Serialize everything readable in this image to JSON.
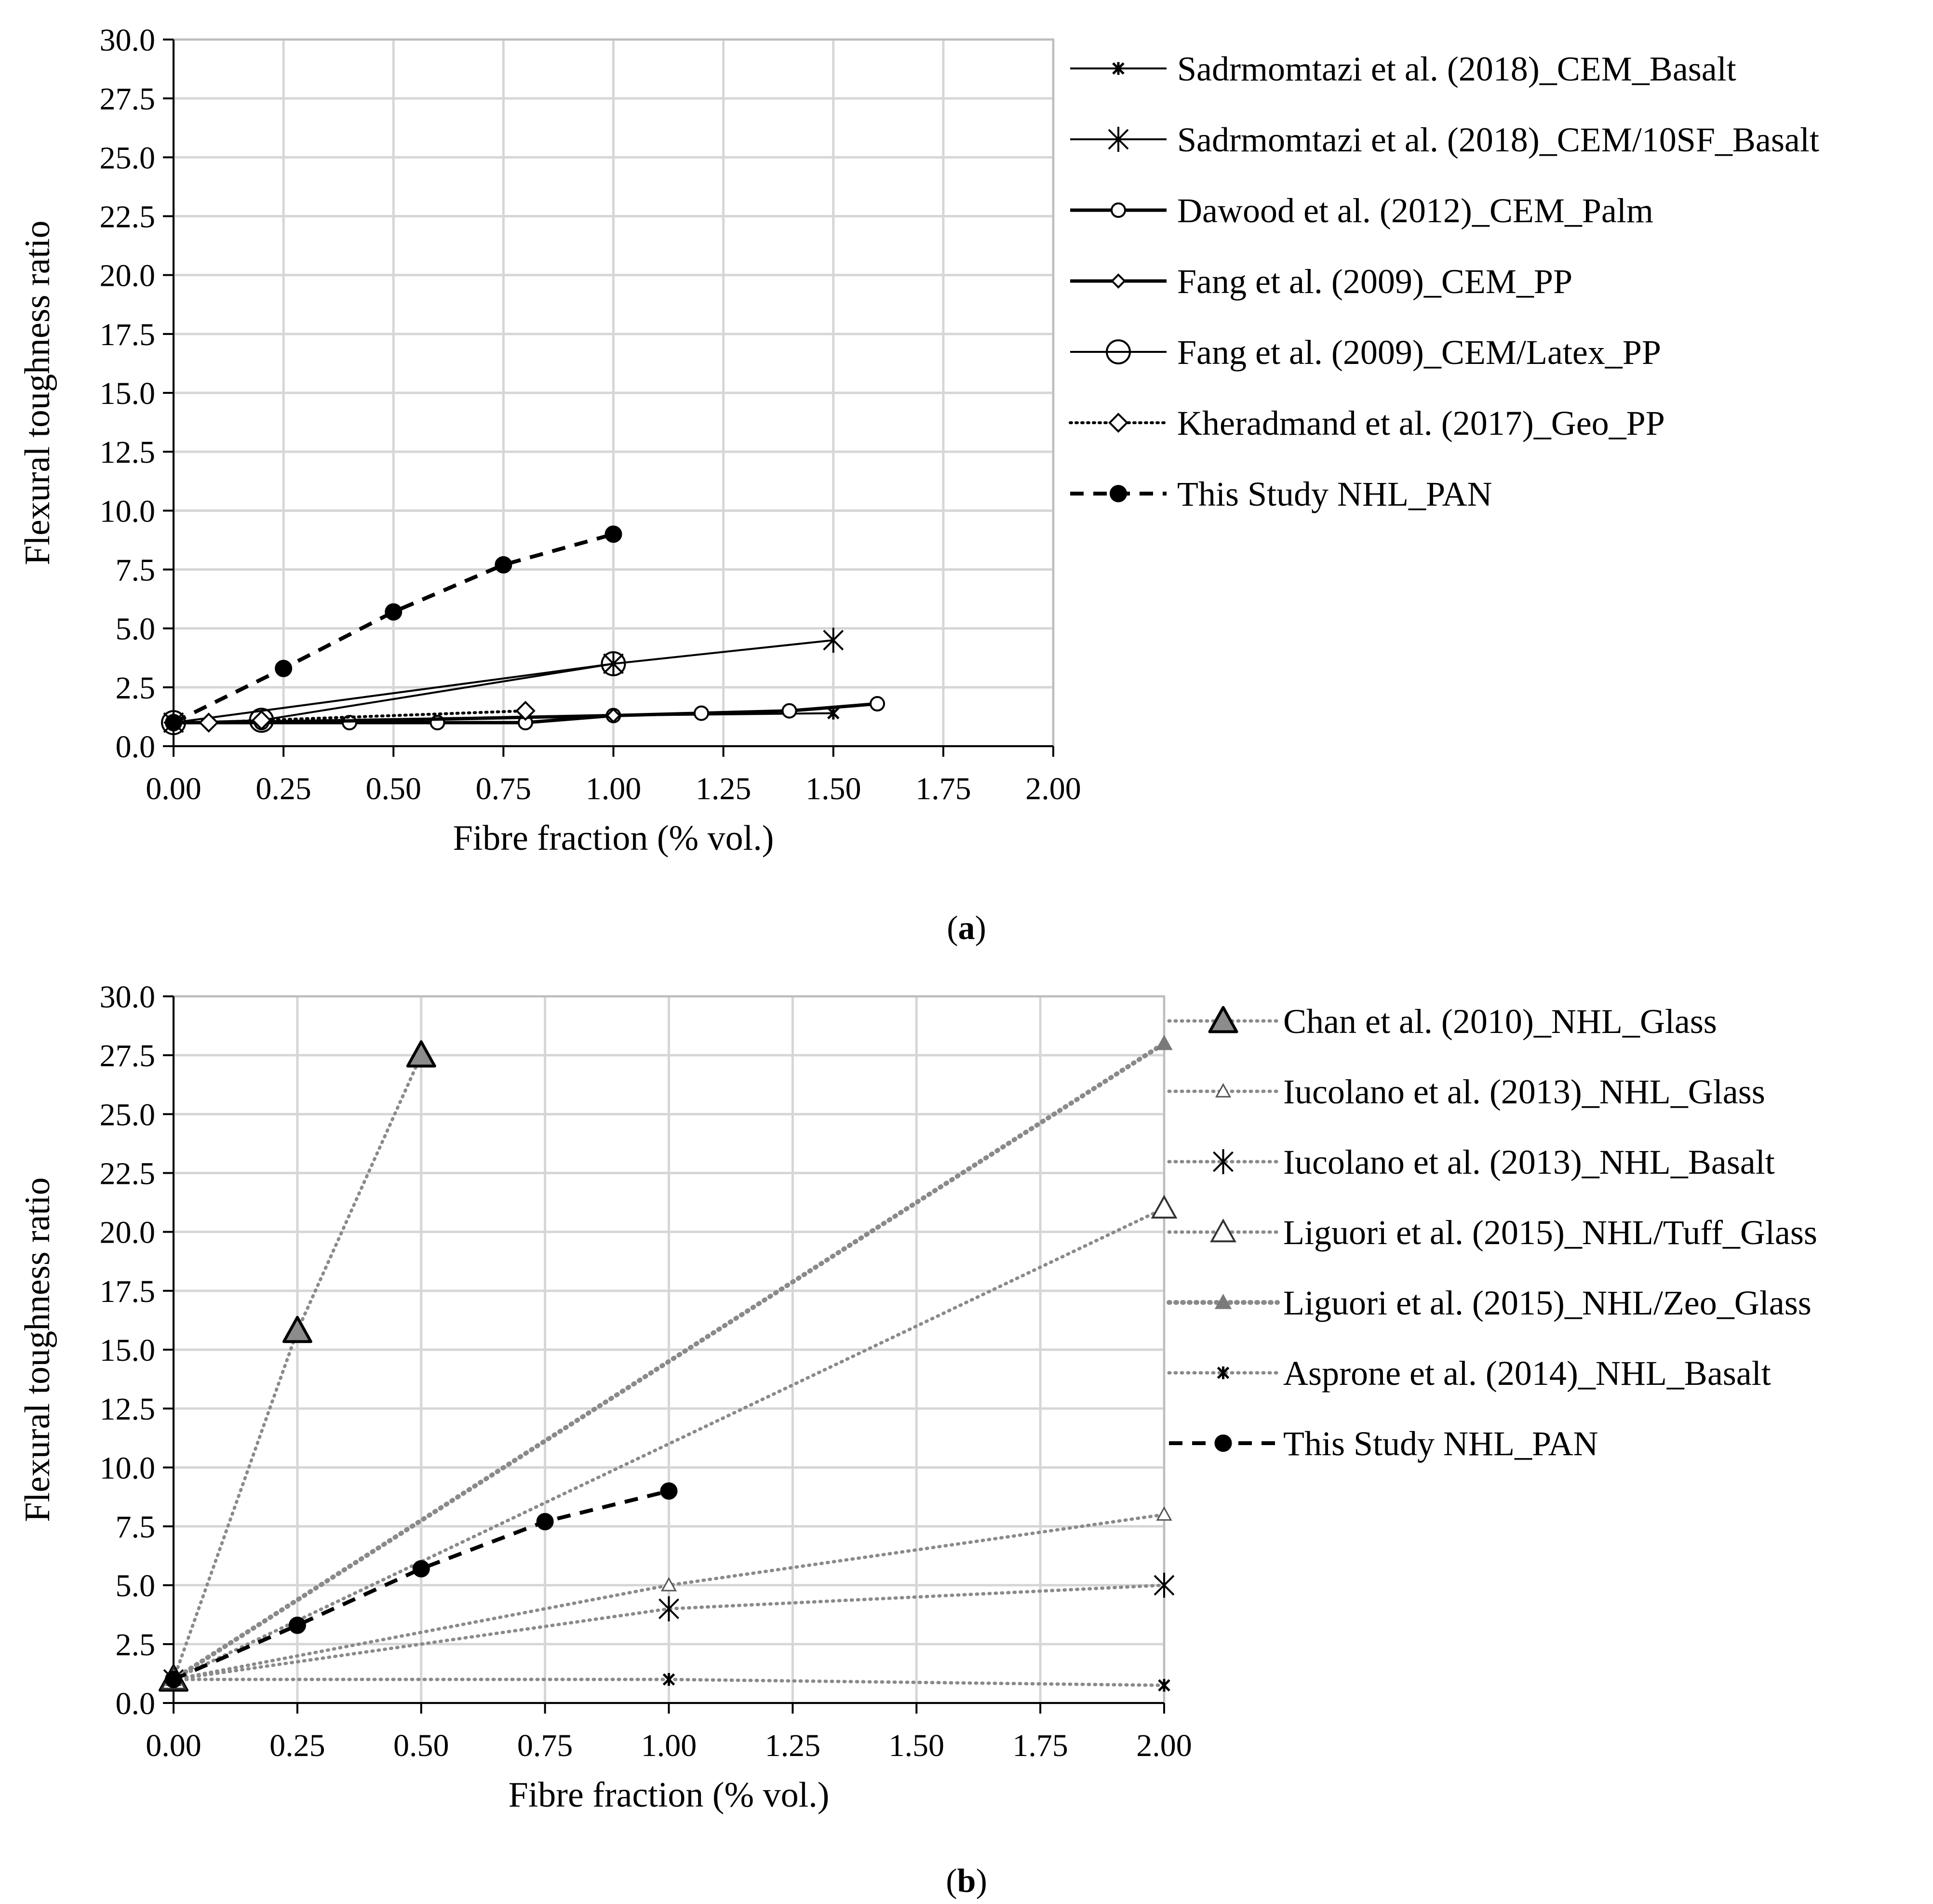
{
  "chart_data": [
    {
      "panel": "a",
      "caption": {
        "pre": "(",
        "letter": "a",
        "post": ")"
      },
      "type": "line",
      "xlabel": "Fibre fraction (% vol.)",
      "ylabel": "Flexural toughness ratio",
      "xlim": [
        0,
        2
      ],
      "ylim": [
        0,
        30
      ],
      "xticks": [
        "0.00",
        "0.25",
        "0.50",
        "0.75",
        "1.00",
        "1.25",
        "1.50",
        "1.75",
        "2.00"
      ],
      "yticks": [
        "0.0",
        "2.5",
        "5.0",
        "7.5",
        "10.0",
        "12.5",
        "15.0",
        "17.5",
        "20.0",
        "22.5",
        "25.0",
        "27.5",
        "30.0"
      ],
      "grid": true,
      "legend_position": "right",
      "series": [
        {
          "name": "Sadrmomtazi et al. (2018)_CEM_Basalt",
          "marker": "star-small",
          "line": "solid",
          "color": "#000000",
          "x": [
            0,
            1.0,
            1.5
          ],
          "y": [
            1.0,
            1.3,
            1.4
          ]
        },
        {
          "name": "Sadrmomtazi et al. (2018)_CEM/10SF_Basalt",
          "marker": "star-large",
          "line": "solid",
          "color": "#000000",
          "x": [
            0,
            1.0,
            1.5
          ],
          "y": [
            1.0,
            3.5,
            4.5
          ]
        },
        {
          "name": "Dawood et al. (2012)_CEM_Palm",
          "marker": "circle-small",
          "line": "solid-thick",
          "color": "#000000",
          "x": [
            0,
            0.2,
            0.4,
            0.6,
            0.8,
            1.0,
            1.2,
            1.4,
            1.6
          ],
          "y": [
            1.0,
            1.0,
            1.0,
            1.0,
            1.0,
            1.3,
            1.4,
            1.5,
            1.8
          ]
        },
        {
          "name": "Fang et al. (2009)_CEM_PP",
          "marker": "diamond-small",
          "line": "solid-thick",
          "color": "#000000",
          "x": [
            0,
            0.2,
            1.0
          ],
          "y": [
            1.0,
            1.0,
            1.3
          ]
        },
        {
          "name": "Fang et al. (2009)_CEM/Latex_PP",
          "marker": "circle-large",
          "line": "solid",
          "color": "#000000",
          "x": [
            0,
            0.2,
            1.0
          ],
          "y": [
            1.0,
            1.1,
            3.5
          ]
        },
        {
          "name": "Kheradmand et al. (2017)_Geo_PP",
          "marker": "diamond-large",
          "line": "dotted",
          "color": "#000000",
          "x": [
            0,
            0.08,
            0.2,
            0.8
          ],
          "y": [
            1.0,
            1.0,
            1.1,
            1.5
          ]
        },
        {
          "name": "This Study NHL_PAN",
          "marker": "circle-filled",
          "line": "dashed",
          "color": "#000000",
          "x": [
            0,
            0.25,
            0.5,
            0.75,
            1.0
          ],
          "y": [
            1.0,
            3.3,
            5.7,
            7.7,
            9.0
          ]
        }
      ]
    },
    {
      "panel": "b",
      "caption": {
        "pre": "(",
        "letter": "b",
        "post": ")"
      },
      "type": "line",
      "xlabel": "Fibre fraction (% vol.)",
      "ylabel": "Flexural toughness ratio",
      "xlim": [
        0,
        2
      ],
      "ylim": [
        0,
        30
      ],
      "xticks": [
        "0.00",
        "0.25",
        "0.50",
        "0.75",
        "1.00",
        "1.25",
        "1.50",
        "1.75",
        "2.00"
      ],
      "yticks": [
        "0.0",
        "2.5",
        "5.0",
        "7.5",
        "10.0",
        "12.5",
        "15.0",
        "17.5",
        "20.0",
        "22.5",
        "25.0",
        "27.5",
        "30.0"
      ],
      "grid": true,
      "legend_position": "right",
      "series": [
        {
          "name": "Chan et al. (2010)_NHL_Glass",
          "marker": "triangle-gray-large",
          "line": "dotted-gray",
          "color": "#8a8a8a",
          "x": [
            0,
            0.25,
            0.5
          ],
          "y": [
            1.0,
            15.8,
            27.5
          ]
        },
        {
          "name": "Iucolano et al. (2013)_NHL_Glass",
          "marker": "triangle-open-small",
          "line": "dotted-gray",
          "color": "#8a8a8a",
          "x": [
            0,
            1.0,
            2.0
          ],
          "y": [
            1.0,
            5.0,
            8.0
          ]
        },
        {
          "name": "Iucolano et al. (2013)_NHL_Basalt",
          "marker": "star-large",
          "line": "dotted-gray",
          "color": "#8a8a8a",
          "x": [
            0,
            1.0,
            2.0
          ],
          "y": [
            1.0,
            4.0,
            5.0
          ]
        },
        {
          "name": "Liguori et al. (2015)_NHL/Tuff_Glass",
          "marker": "triangle-open-large",
          "line": "dotted-gray",
          "color": "#8a8a8a",
          "x": [
            0,
            2.0
          ],
          "y": [
            1.0,
            21.0
          ]
        },
        {
          "name": "Liguori et al. (2015)_NHL/Zeo_Glass",
          "marker": "triangle-gray-small",
          "line": "dotted-gray-thick",
          "color": "#8a8a8a",
          "x": [
            0,
            2.0
          ],
          "y": [
            1.0,
            28.0
          ]
        },
        {
          "name": "Asprone et al. (2014)_NHL_Basalt",
          "marker": "star-small",
          "line": "dotted-gray",
          "color": "#8a8a8a",
          "x": [
            0,
            1.0,
            2.0
          ],
          "y": [
            1.0,
            1.0,
            0.75
          ]
        },
        {
          "name": "This Study NHL_PAN",
          "marker": "circle-filled",
          "line": "dashed",
          "color": "#000000",
          "x": [
            0,
            0.25,
            0.5,
            0.75,
            1.0
          ],
          "y": [
            1.0,
            3.3,
            5.7,
            7.7,
            9.0
          ]
        }
      ]
    }
  ]
}
